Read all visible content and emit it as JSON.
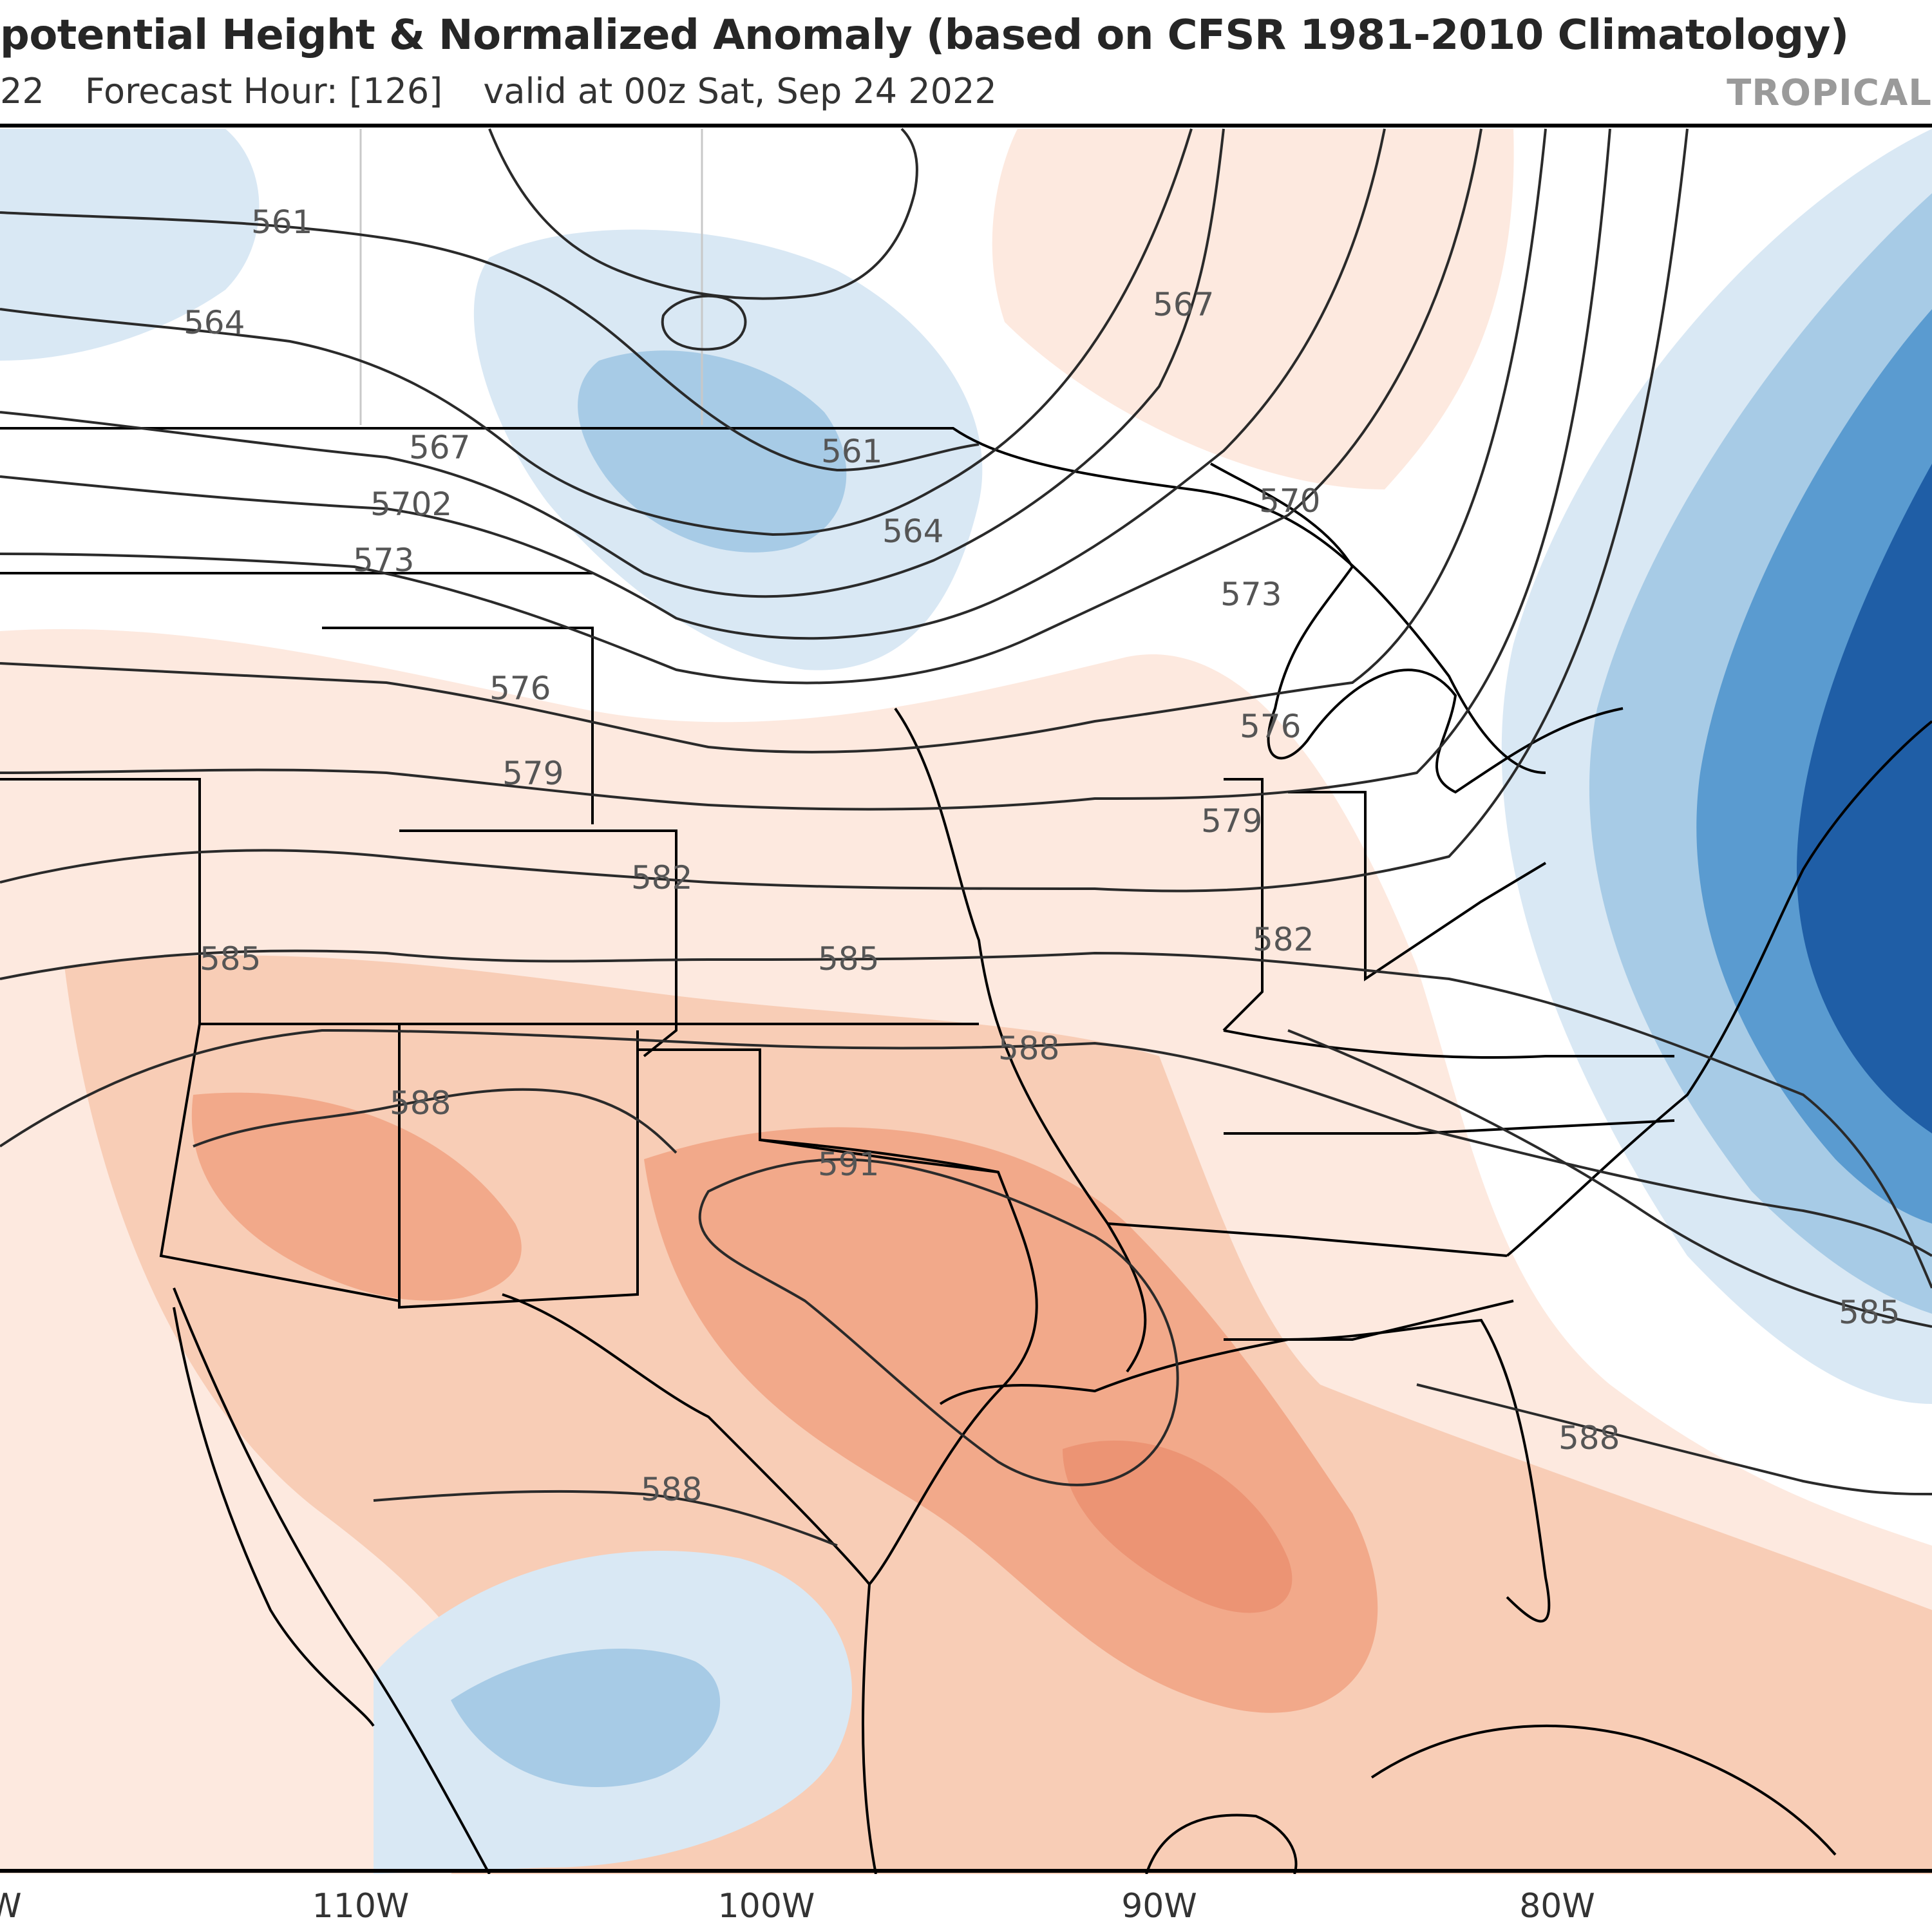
{
  "header": {
    "title": "potential Height & Normalized Anomaly (based on CFSR 1981-2010 Climatology)",
    "init_fragment": "22",
    "forecast_hour": "Forecast Hour: [126]",
    "valid_time": "valid at 00z Sat, Sep 24 2022",
    "brand": "TROPICAL"
  },
  "axes": {
    "longitude_labels": [
      "W",
      "110W",
      "100W",
      "90W",
      "80W"
    ]
  },
  "map": {
    "field": "500mb geopotential height (dam) with normalized anomaly shading",
    "colors": {
      "positive_light": "#fde9df",
      "positive_mid": "#f8cdb6",
      "positive_strong": "#f2a98a",
      "positive_max": "#ec9474",
      "negative_light": "#d9e8f4",
      "negative_mid": "#a7cbe6",
      "negative_strong": "#5a9bd0",
      "negative_max": "#1f5ea6",
      "contour": "#2a2a2a",
      "label": "#555555"
    },
    "contour_labels": [
      "561",
      "564",
      "567",
      "570",
      "573",
      "576",
      "579",
      "582",
      "585",
      "588",
      "591"
    ],
    "labels": {
      "l561a": "561",
      "l564a": "564",
      "l567a": "567",
      "l567b": "567",
      "l5702": "5702",
      "l573a": "573",
      "l576a": "576",
      "l579a": "579",
      "l582a": "582",
      "l585a": "585",
      "l585b": "585",
      "l588a": "588",
      "l561b": "561",
      "l564b": "564",
      "l570a": "570",
      "l573b": "573",
      "l576b": "576",
      "l579b": "579",
      "l582b": "582",
      "l588b": "588",
      "l591": "591",
      "l585c": "585",
      "l588c": "588",
      "l588d": "588"
    }
  }
}
